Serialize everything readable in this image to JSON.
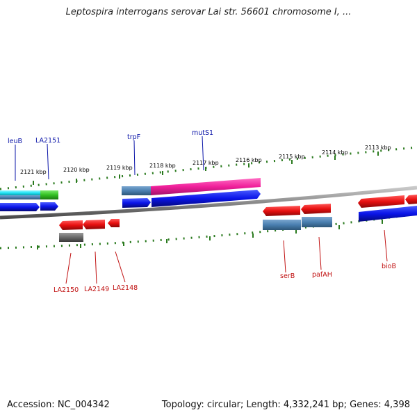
{
  "title": "Leptospira interrogans serovar Lai str. 56601 chromosome I, ...",
  "footer": {
    "accession": "Accession: NC_004342",
    "summary": "Topology: circular; Length: 4,332,241 bp; Genes: 4,398"
  },
  "scale": {
    "ticks": [
      "2121 kbp",
      "2120 kbp",
      "2119 kbp",
      "2118 kbp",
      "2117 kbp",
      "2116 kbp",
      "2115 kbp",
      "2114 kbp",
      "2113 kbp"
    ]
  },
  "genes": {
    "leuB": "leuB",
    "LA2151": "LA2151",
    "trpF": "trpF",
    "mutS1": "mutS1",
    "LA2150": "LA2150",
    "LA2149": "LA2149",
    "LA2148": "LA2148",
    "serB": "serB",
    "pafAH": "pafAH",
    "bioB": "bioB"
  },
  "colors": {
    "forward_label": "#0a14a8",
    "reverse_label": "#c01010",
    "cds_forward": "#0a14e8",
    "cds_reverse": "#e81010",
    "gene_bar": "#4a7fb0",
    "tick": "#2a7a1e",
    "backbone": "#8a8a8a"
  }
}
